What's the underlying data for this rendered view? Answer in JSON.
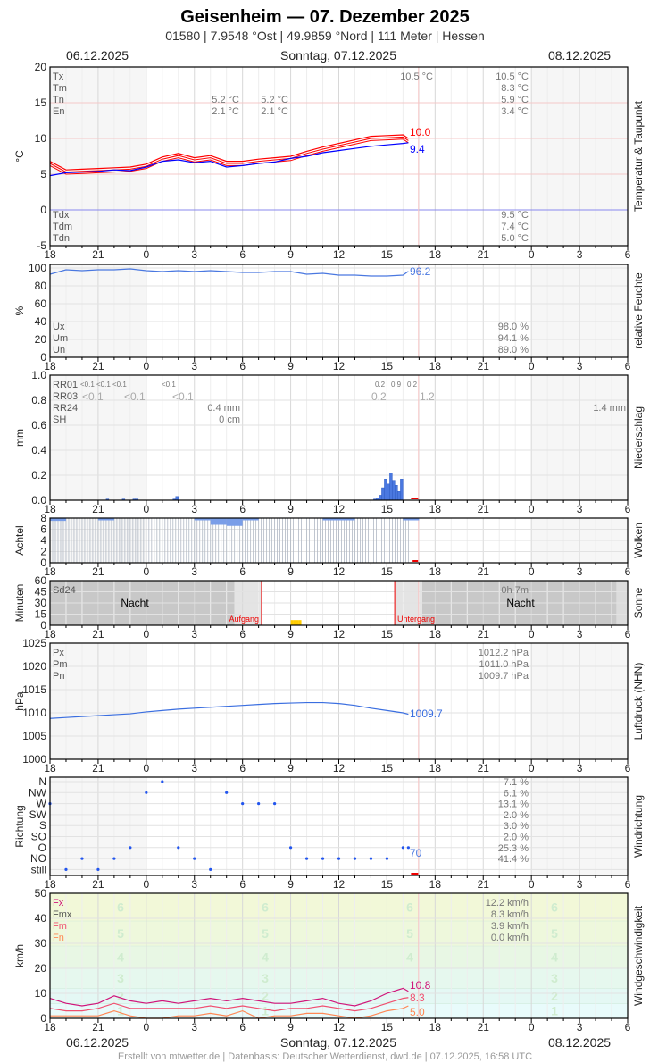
{
  "header": {
    "title": "Geisenheim  —  07. Dezember 2025",
    "subtitle": "01580  |  7.9548 °Ost  |  49.9859 °Nord  |  111 Meter  |  Hessen",
    "date_left": "06.12.2025",
    "date_center": "Sonntag, 07.12.2025",
    "date_right": "08.12.2025"
  },
  "footer": "Erstellt von mtwetter.de | Datenbasis: Deutscher Wetterdienst, dwd.de | 07.12.2025, 16:58 UTC",
  "xticks": [
    "18",
    "21",
    "0",
    "3",
    "6",
    "9",
    "12",
    "15",
    "18",
    "21",
    "0",
    "3",
    "6"
  ],
  "now": "2025-12-07T16:58",
  "chart_data": [
    {
      "type": "line",
      "id": "temp",
      "title": "Temperatur & Taupunkt",
      "ylabel": "°C",
      "ylim": [
        -5,
        20
      ],
      "yticks": [
        "20",
        "15",
        "10",
        "5",
        "0",
        "-5"
      ],
      "times": [
        "06T18:00",
        "06T19:00",
        "06T20:00",
        "06T21:00",
        "06T22:00",
        "06T23:00",
        "07T00:00",
        "07T01:00",
        "07T02:00",
        "07T03:00",
        "07T04:00",
        "07T05:00",
        "07T06:00",
        "07T07:00",
        "07T08:00",
        "07T09:00",
        "07T10:00",
        "07T11:00",
        "07T12:00",
        "07T13:00",
        "07T14:00",
        "07T15:00",
        "07T16:00",
        "07T16:20"
      ],
      "series": [
        {
          "name": "T",
          "color": "#ff0000",
          "values": [
            6.8,
            5.6,
            5.7,
            5.8,
            5.9,
            6.0,
            6.4,
            7.4,
            7.9,
            7.3,
            7.6,
            6.8,
            6.8,
            7.1,
            7.3,
            7.5,
            8.2,
            8.8,
            9.3,
            9.8,
            10.3,
            10.4,
            10.5,
            10.0
          ]
        },
        {
          "name": "Td",
          "color": "#0000ff",
          "values": [
            4.8,
            5.2,
            5.3,
            5.4,
            5.6,
            5.5,
            6.0,
            6.8,
            7.0,
            6.6,
            6.8,
            6.0,
            6.2,
            6.5,
            6.7,
            7.2,
            7.5,
            8.0,
            8.3,
            8.6,
            8.9,
            9.1,
            9.3,
            9.4
          ]
        }
      ],
      "end_labels": [
        "10.0",
        "9.4"
      ],
      "stats": {
        "labels": [
          "Tx",
          "Tm",
          "Tn",
          "En"
        ],
        "day1": [
          "",
          "",
          "5.2 °C",
          "2.1 °C"
        ],
        "day1b": [
          "",
          "",
          "5.2 °C",
          "2.1 °C"
        ],
        "tx_time": "10.5 °C",
        "day2": [
          "10.5 °C",
          "8.3 °C",
          "5.9 °C",
          "3.4 °C"
        ],
        "labels2": [
          "Tdx",
          "Tdm",
          "Tdn"
        ],
        "day2b": [
          "9.5 °C",
          "7.4 °C",
          "5.0 °C"
        ]
      }
    },
    {
      "type": "line",
      "id": "rh",
      "title": "relative Feuchte",
      "ylabel": "%",
      "ylim": [
        0,
        104
      ],
      "yticks": [
        "100",
        "80",
        "60",
        "40",
        "20",
        "0"
      ],
      "series": [
        {
          "name": "U",
          "color": "#4a78e0",
          "values": [
            93,
            98,
            97,
            98,
            98,
            99,
            97,
            96,
            97,
            96,
            97,
            96,
            95,
            95,
            96,
            96,
            93,
            94,
            92,
            92,
            91,
            91,
            92,
            96.2
          ]
        }
      ],
      "end_labels": [
        "96.2"
      ],
      "stats": {
        "labels": [
          "Ux",
          "Um",
          "Un"
        ],
        "day2": [
          "98.0 %",
          "94.1 %",
          "89.0 %"
        ]
      }
    },
    {
      "type": "bar",
      "id": "rain",
      "title": "Niederschlag",
      "ylabel": "mm",
      "ylim": [
        0,
        1
      ],
      "yticks": [
        "1.0",
        "0.8",
        "0.6",
        "0.4",
        "0.2",
        "0.0"
      ],
      "bars": [
        [
          "06T21:30",
          0.01
        ],
        [
          "06T22:30",
          0.01
        ],
        [
          "06T23:10",
          0.01
        ],
        [
          "06T23:20",
          0.01
        ],
        [
          "07T01:40",
          0.01
        ],
        [
          "07T01:50",
          0.03
        ],
        [
          "07T14:10",
          0.01
        ],
        [
          "07T14:20",
          0.02
        ],
        [
          "07T14:30",
          0.04
        ],
        [
          "07T14:40",
          0.1
        ],
        [
          "07T14:50",
          0.17
        ],
        [
          "07T15:00",
          0.13
        ],
        [
          "07T15:10",
          0.22
        ],
        [
          "07T15:20",
          0.16
        ],
        [
          "07T15:30",
          0.12
        ],
        [
          "07T15:40",
          0.07
        ],
        [
          "07T15:50",
          0.17
        ]
      ],
      "stats": {
        "labels": [
          "RR01",
          "RR03",
          "RR24",
          "SH"
        ],
        "rr01": [
          "<0.1",
          "<0.1",
          "<0.1",
          "<0.1",
          "0.2",
          "0.9",
          "0.2"
        ],
        "rr03": [
          "<0.1",
          "<0.1",
          "<0.1",
          "0.2",
          "1.2"
        ],
        "rr24_day1": "0.4 mm",
        "sh_day1": "0 cm",
        "rr24_day2": "1.4 mm"
      }
    },
    {
      "type": "bar",
      "id": "clouds",
      "title": "Wolken",
      "ylabel": "Achtel",
      "ylim": [
        0,
        8
      ],
      "yticks": [
        "8",
        "6",
        "4",
        "2",
        "0"
      ],
      "values": [
        7.5,
        8,
        8,
        7.6,
        8,
        8,
        8,
        8,
        8,
        7.6,
        6.8,
        6.6,
        7.6,
        8,
        8,
        8,
        8,
        7.6,
        7.6,
        8,
        8,
        8,
        7.6
      ]
    },
    {
      "type": "bar",
      "id": "sun",
      "title": "Sonne",
      "ylabel": "Minuten",
      "ylim": [
        0,
        60
      ],
      "yticks": [
        "60",
        "45",
        "30",
        "15",
        "0"
      ],
      "sunrise": "07T07:11",
      "sunset": "07T15:29",
      "sunshine": [
        [
          "07T09:00",
          7
        ],
        [
          "07T09:10",
          7
        ],
        [
          "07T09:20",
          7
        ],
        [
          "07T09:30",
          7
        ]
      ],
      "labels": {
        "sd24": "Sd24",
        "night": "Nacht",
        "sunrise": "Aufgang",
        "sunset": "Untergang",
        "total": "0h 7m"
      }
    },
    {
      "type": "line",
      "id": "pressure",
      "title": "Luftdruck (NHN)",
      "ylabel": "hPa",
      "ylim": [
        1000,
        1025
      ],
      "yticks": [
        "1025",
        "1020",
        "1015",
        "1010",
        "1005",
        "1000"
      ],
      "series": [
        {
          "name": "P",
          "color": "#3a6ee0",
          "values": [
            1008.8,
            1009.0,
            1009.2,
            1009.4,
            1009.6,
            1009.8,
            1010.2,
            1010.5,
            1010.8,
            1011.0,
            1011.2,
            1011.4,
            1011.6,
            1011.8,
            1012.0,
            1012.1,
            1012.2,
            1012.2,
            1012.0,
            1011.6,
            1011.0,
            1010.5,
            1010.0,
            1009.7
          ]
        }
      ],
      "end_labels": [
        "1009.7"
      ],
      "stats": {
        "labels": [
          "Px",
          "Pm",
          "Pn"
        ],
        "day2": [
          "1012.2 hPa",
          "1011.0 hPa",
          "1009.7 hPa"
        ]
      }
    },
    {
      "type": "scatter",
      "id": "winddir",
      "title": "Windrichtung",
      "ylabel": "Richtung",
      "ylim": [
        0,
        360
      ],
      "yticks": [
        "N",
        "NW",
        "W",
        "SW",
        "S",
        "SO",
        "O",
        "NO",
        "still"
      ],
      "series": [
        {
          "name": "dd",
          "color": "#2255ee",
          "values": [
            270,
            0,
            45,
            20,
            50,
            100,
            330,
            355,
            90,
            40,
            10,
            320,
            280,
            260,
            270,
            90,
            60,
            50,
            40,
            60,
            50,
            60,
            70,
            70
          ]
        }
      ],
      "end_labels": [
        "70"
      ],
      "stats": {
        "day2": [
          "7.1 %",
          "6.1 %",
          "13.1 %",
          "2.0 %",
          "3.0 %",
          "2.0 %",
          "25.3 %",
          "41.4 %"
        ]
      }
    },
    {
      "type": "line",
      "id": "wind",
      "title": "Windgeschwindigkeit",
      "ylabel": "km/h",
      "ylim": [
        0,
        50
      ],
      "yticks": [
        "50",
        "40",
        "30",
        "20",
        "10",
        "0"
      ],
      "beaufort": [
        "1",
        "2",
        "3",
        "4",
        "5",
        "6"
      ],
      "series": [
        {
          "name": "Fx",
          "color": "#d0157a",
          "values": [
            8,
            6,
            5,
            6,
            9,
            7,
            6,
            7,
            6,
            7,
            8,
            7,
            8,
            7,
            6,
            6,
            7,
            8,
            6,
            5,
            7,
            10,
            12,
            10.8
          ]
        },
        {
          "name": "Fm",
          "color": "#f05070",
          "values": [
            4,
            3,
            3,
            4,
            6,
            4,
            4,
            4,
            4,
            4,
            5,
            4,
            5,
            4,
            3,
            4,
            4,
            5,
            4,
            3,
            4,
            6,
            8,
            8.3
          ]
        },
        {
          "name": "Fn",
          "color": "#ff8855",
          "values": [
            1,
            1,
            1,
            1,
            3,
            1,
            0,
            0,
            1,
            1,
            2,
            1,
            3,
            0,
            1,
            1,
            2,
            2,
            1,
            0,
            1,
            3,
            4,
            5.0
          ]
        }
      ],
      "end_labels": [
        "10.8",
        "8.3",
        "5.0"
      ],
      "stats": {
        "labels": [
          "Fx",
          "Fmx",
          "Fm",
          "Fn"
        ],
        "day2": [
          "12.2 km/h",
          "8.3 km/h",
          "3.9 km/h",
          "0.0 km/h"
        ]
      }
    }
  ]
}
